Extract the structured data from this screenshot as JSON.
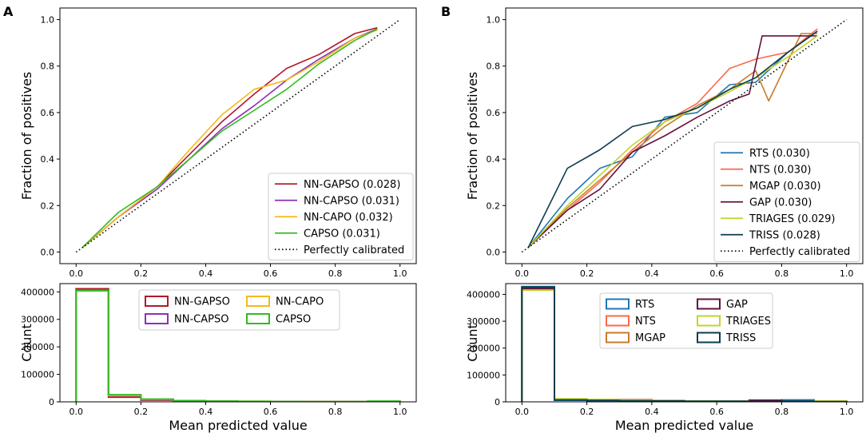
{
  "chart_data": [
    {
      "panel": "A",
      "type": "line",
      "title": "",
      "xlabel": "",
      "ylabel": "Fraction of positives",
      "xlim": [
        -0.05,
        1.05
      ],
      "ylim": [
        -0.05,
        1.05
      ],
      "xticks": [
        0.0,
        0.2,
        0.4,
        0.6,
        0.8,
        1.0
      ],
      "yticks": [
        0.0,
        0.2,
        0.4,
        0.6,
        0.8,
        1.0
      ],
      "xtick_labels": [
        "0.0",
        "0.2",
        "0.4",
        "0.6",
        "0.8",
        "1.0"
      ],
      "ytick_labels": [
        "0.0",
        "0.2",
        "0.4",
        "0.6",
        "0.8",
        "1.0"
      ],
      "legend_position": "lower-right",
      "series": [
        {
          "name": "NN-GAPSO (0.028)",
          "color": "#b2182b",
          "x": [
            0.02,
            0.13,
            0.25,
            0.35,
            0.45,
            0.55,
            0.65,
            0.75,
            0.86,
            0.93
          ],
          "y": [
            0.02,
            0.15,
            0.28,
            0.42,
            0.56,
            0.68,
            0.79,
            0.85,
            0.94,
            0.965
          ]
        },
        {
          "name": "NN-CAPSO (0.031)",
          "color": "#8e30b4",
          "x": [
            0.02,
            0.13,
            0.25,
            0.35,
            0.45,
            0.55,
            0.65,
            0.75,
            0.86,
            0.93
          ],
          "y": [
            0.02,
            0.15,
            0.27,
            0.4,
            0.53,
            0.63,
            0.74,
            0.83,
            0.92,
            0.96
          ]
        },
        {
          "name": "NN-CAPO (0.032)",
          "color": "#f7b81a",
          "x": [
            0.02,
            0.13,
            0.25,
            0.35,
            0.45,
            0.55,
            0.65,
            0.75,
            0.86,
            0.93
          ],
          "y": [
            0.02,
            0.15,
            0.28,
            0.44,
            0.59,
            0.7,
            0.74,
            0.82,
            0.92,
            0.955
          ]
        },
        {
          "name": "CAPSO (0.031)",
          "color": "#33bb22",
          "x": [
            0.02,
            0.13,
            0.25,
            0.35,
            0.45,
            0.55,
            0.65,
            0.75,
            0.86,
            0.93
          ],
          "y": [
            0.02,
            0.17,
            0.28,
            0.4,
            0.52,
            0.61,
            0.7,
            0.81,
            0.91,
            0.96
          ]
        },
        {
          "name": "Perfectly calibrated",
          "color": "#000000",
          "style": "dotted",
          "x": [
            0,
            1
          ],
          "y": [
            0,
            1
          ]
        }
      ]
    },
    {
      "panel": "A",
      "type": "histogram",
      "xlabel": "Mean predicted value",
      "ylabel": "Count",
      "xlim": [
        -0.05,
        1.05
      ],
      "ylim": [
        0,
        430000
      ],
      "xticks": [
        0.0,
        0.2,
        0.4,
        0.6,
        0.8,
        1.0
      ],
      "yticks": [
        0,
        100000,
        200000,
        300000,
        400000
      ],
      "xtick_labels": [
        "0.0",
        "0.2",
        "0.4",
        "0.6",
        "0.8",
        "1.0"
      ],
      "ytick_labels": [
        "0",
        "100000",
        "200000",
        "300000",
        "400000"
      ],
      "bin_edges": [
        0.0,
        0.1,
        0.2,
        0.3,
        0.4,
        0.5,
        0.6,
        0.7,
        0.8,
        0.9,
        1.0
      ],
      "legend_position": "upper-right",
      "legend_columns": 2,
      "series": [
        {
          "name": "NN-GAPSO",
          "color": "#b2182b",
          "counts": [
            411000,
            17000,
            6000,
            3000,
            2000,
            1300,
            1000,
            800,
            700,
            1200
          ]
        },
        {
          "name": "NN-CAPSO",
          "color": "#8e30b4",
          "counts": [
            405000,
            22000,
            8000,
            3500,
            2200,
            1500,
            1100,
            900,
            800,
            1100
          ]
        },
        {
          "name": "NN-CAPO",
          "color": "#f7b81a",
          "counts": [
            404000,
            23000,
            9000,
            4000,
            2400,
            1600,
            1100,
            900,
            800,
            1000
          ]
        },
        {
          "name": "CAPSO",
          "color": "#33bb22",
          "counts": [
            404000,
            26000,
            10000,
            4500,
            2600,
            1700,
            1200,
            900,
            800,
            2500
          ]
        }
      ]
    },
    {
      "panel": "B",
      "type": "line",
      "title": "",
      "xlabel": "",
      "ylabel": "Fraction of positives",
      "xlim": [
        -0.05,
        1.05
      ],
      "ylim": [
        -0.05,
        1.05
      ],
      "xticks": [
        0.0,
        0.2,
        0.4,
        0.6,
        0.8,
        1.0
      ],
      "yticks": [
        0.0,
        0.2,
        0.4,
        0.6,
        0.8,
        1.0
      ],
      "xtick_labels": [
        "0.0",
        "0.2",
        "0.4",
        "0.6",
        "0.8",
        "1.0"
      ],
      "ytick_labels": [
        "0.0",
        "0.2",
        "0.4",
        "0.6",
        "0.8",
        "1.0"
      ],
      "legend_position": "lower-right",
      "series": [
        {
          "name": "RTS (0.030)",
          "color": "#1f78b4",
          "x": [
            0.02,
            0.14,
            0.24,
            0.34,
            0.44,
            0.54,
            0.64,
            0.72,
            0.82,
            0.91
          ],
          "y": [
            0.02,
            0.23,
            0.36,
            0.41,
            0.58,
            0.6,
            0.72,
            0.73,
            0.86,
            0.95
          ]
        },
        {
          "name": "NTS (0.030)",
          "color": "#fb6a4a",
          "x": [
            0.02,
            0.14,
            0.24,
            0.34,
            0.44,
            0.54,
            0.64,
            0.72,
            0.82,
            0.91
          ],
          "y": [
            0.02,
            0.18,
            0.3,
            0.44,
            0.56,
            0.64,
            0.79,
            0.83,
            0.86,
            0.96
          ]
        },
        {
          "name": "MGAP (0.030)",
          "color": "#c97c2b",
          "x": [
            0.02,
            0.14,
            0.24,
            0.34,
            0.44,
            0.54,
            0.64,
            0.72,
            0.76,
            0.86,
            0.91
          ],
          "y": [
            0.02,
            0.19,
            0.31,
            0.43,
            0.54,
            0.63,
            0.7,
            0.78,
            0.65,
            0.94,
            0.94
          ]
        },
        {
          "name": "GAP (0.030)",
          "color": "#67103d",
          "x": [
            0.02,
            0.14,
            0.24,
            0.34,
            0.44,
            0.54,
            0.64,
            0.7,
            0.74,
            0.82,
            0.91
          ],
          "y": [
            0.02,
            0.18,
            0.27,
            0.43,
            0.5,
            0.58,
            0.65,
            0.68,
            0.93,
            0.93,
            0.93
          ]
        },
        {
          "name": "TRIAGES (0.029)",
          "color": "#bfd52a",
          "x": [
            0.02,
            0.14,
            0.24,
            0.34,
            0.44,
            0.54,
            0.64,
            0.72,
            0.82,
            0.91
          ],
          "y": [
            0.02,
            0.2,
            0.33,
            0.46,
            0.56,
            0.62,
            0.69,
            0.75,
            0.84,
            0.93
          ]
        },
        {
          "name": "TRISS (0.028)",
          "color": "#0b3d4c",
          "x": [
            0.02,
            0.14,
            0.24,
            0.34,
            0.44,
            0.54,
            0.64,
            0.72,
            0.82,
            0.91
          ],
          "y": [
            0.02,
            0.36,
            0.44,
            0.54,
            0.57,
            0.62,
            0.7,
            0.75,
            0.86,
            0.95
          ]
        },
        {
          "name": "Perfectly calibrated",
          "color": "#000000",
          "style": "dotted",
          "x": [
            0,
            1
          ],
          "y": [
            0,
            1
          ]
        }
      ]
    },
    {
      "panel": "B",
      "type": "histogram",
      "xlabel": "Mean predicted value",
      "ylabel": "Count",
      "xlim": [
        -0.05,
        1.05
      ],
      "ylim": [
        0,
        440000
      ],
      "xticks": [
        0.0,
        0.2,
        0.4,
        0.6,
        0.8,
        1.0
      ],
      "yticks": [
        0,
        100000,
        200000,
        300000,
        400000
      ],
      "xtick_labels": [
        "0.0",
        "0.2",
        "0.4",
        "0.6",
        "0.8",
        "1.0"
      ],
      "ytick_labels": [
        "0",
        "100000",
        "200000",
        "300000",
        "400000"
      ],
      "bin_edges": [
        0.0,
        0.1,
        0.2,
        0.3,
        0.4,
        0.5,
        0.6,
        0.7,
        0.8,
        0.9,
        1.0
      ],
      "legend_position": "upper-right",
      "legend_columns": 2,
      "series": [
        {
          "name": "RTS",
          "color": "#1f78b4",
          "counts": [
            429000,
            6000,
            4000,
            3000,
            2500,
            2000,
            1500,
            4000,
            7000,
            1000
          ]
        },
        {
          "name": "NTS",
          "color": "#fb6a4a",
          "counts": [
            423000,
            9000,
            6000,
            4000,
            3000,
            2000,
            1500,
            1200,
            1000,
            800
          ]
        },
        {
          "name": "MGAP",
          "color": "#c97c2b",
          "counts": [
            418000,
            10000,
            8000,
            8000,
            5000,
            3000,
            2000,
            1000,
            800,
            500
          ]
        },
        {
          "name": "GAP",
          "color": "#67103d",
          "counts": [
            421000,
            8000,
            6000,
            5000,
            3000,
            2000,
            1500,
            6000,
            1000,
            500
          ]
        },
        {
          "name": "TRIAGES",
          "color": "#bfd52a",
          "counts": [
            416000,
            11000,
            9000,
            6000,
            4000,
            3000,
            2000,
            1500,
            1000,
            3000
          ]
        },
        {
          "name": "TRISS",
          "color": "#0b3d4c",
          "counts": [
            427000,
            7000,
            5000,
            4000,
            3000,
            2500,
            2000,
            1500,
            2500,
            600
          ]
        }
      ]
    }
  ],
  "panels": {
    "a": {
      "letter": "A"
    },
    "b": {
      "letter": "B"
    }
  }
}
